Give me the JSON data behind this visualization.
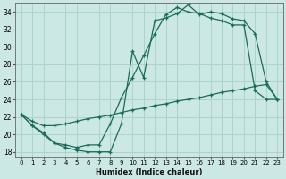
{
  "xlabel": "Humidex (Indice chaleur)",
  "bg_color": "#cce8e4",
  "grid_color": "#aad4cc",
  "line_color": "#1a6b5a",
  "xlim": [
    -0.5,
    23.5
  ],
  "ylim": [
    17.5,
    35.0
  ],
  "yticks": [
    18,
    20,
    22,
    24,
    26,
    28,
    30,
    32,
    34
  ],
  "xticks": [
    0,
    1,
    2,
    3,
    4,
    5,
    6,
    7,
    8,
    9,
    10,
    11,
    12,
    13,
    14,
    15,
    16,
    17,
    18,
    19,
    20,
    21,
    22,
    23
  ],
  "line1_x": [
    0,
    1,
    2,
    3,
    4,
    5,
    6,
    7,
    8,
    9,
    10,
    11,
    12,
    13,
    14,
    15,
    16,
    17,
    18,
    19,
    20,
    21,
    22,
    23
  ],
  "line1_y": [
    22.3,
    21.0,
    20.0,
    19.0,
    18.5,
    18.2,
    18.0,
    18.0,
    18.0,
    21.2,
    29.5,
    26.5,
    33.0,
    33.3,
    33.8,
    34.8,
    33.7,
    34.0,
    33.8,
    33.2,
    33.0,
    31.5,
    26.0,
    24.0
  ],
  "line2_x": [
    0,
    1,
    2,
    3,
    4,
    5,
    6,
    7,
    8,
    9,
    10,
    11,
    12,
    13,
    14,
    15,
    16,
    17,
    18,
    19,
    20,
    21,
    22,
    23
  ],
  "line2_y": [
    22.3,
    21.0,
    20.2,
    19.0,
    18.8,
    18.5,
    18.8,
    18.8,
    21.2,
    24.2,
    26.5,
    29.0,
    31.5,
    33.7,
    34.5,
    34.0,
    33.8,
    33.3,
    33.0,
    32.5,
    32.5,
    25.0,
    24.0,
    24.0
  ],
  "line3_x": [
    0,
    1,
    2,
    3,
    4,
    5,
    6,
    7,
    8,
    9,
    10,
    11,
    12,
    13,
    14,
    15,
    16,
    17,
    18,
    19,
    20,
    21,
    22,
    23
  ],
  "line3_y": [
    22.3,
    21.5,
    21.0,
    21.0,
    21.2,
    21.5,
    21.8,
    22.0,
    22.2,
    22.5,
    22.8,
    23.0,
    23.3,
    23.5,
    23.8,
    24.0,
    24.2,
    24.5,
    24.8,
    25.0,
    25.2,
    25.5,
    25.7,
    24.0
  ]
}
